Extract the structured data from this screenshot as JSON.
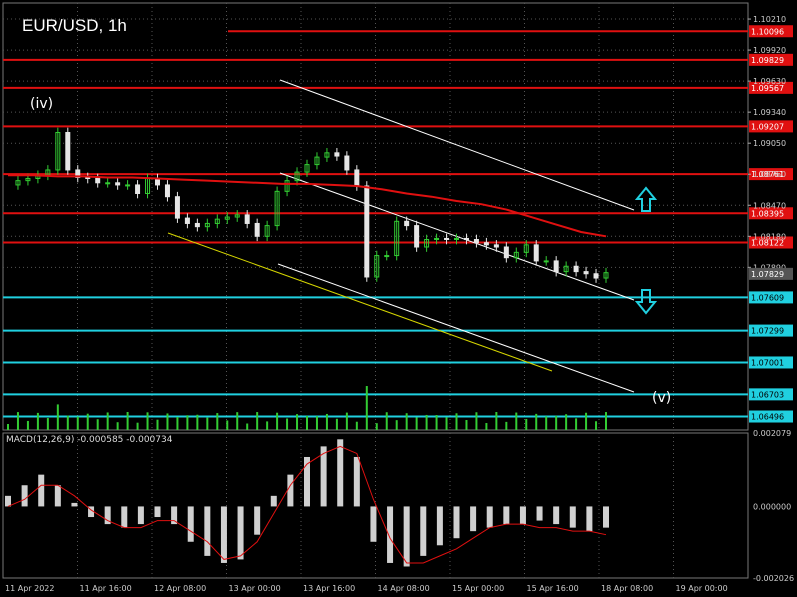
{
  "header": {
    "title": "EUR/USD, 1h"
  },
  "macd": {
    "label": "MACD(12,26,9) -0.000585 -0.000734"
  },
  "colors": {
    "background": "#000000",
    "bull_candle": "#33cc33",
    "bear_candle": "#e6e6e6",
    "moving_average": "#e01010",
    "resistance": "#e01010",
    "support": "#20d0e0",
    "channel": "#ffffff",
    "lower_trendline": "#d6d600",
    "volume": "#33cc33",
    "macd_signal": "#e01010",
    "macd_histogram": "#d0d0d0",
    "arrow": "#20d0e0"
  },
  "chart_data": {
    "type": "candlestick",
    "symbol": "EUR/USD",
    "timeframe": "1h",
    "ylim": [
      1.0637,
      1.1036
    ],
    "y_ticks": [
      "1.10210",
      "1.09920",
      "1.09630",
      "1.09340",
      "1.09050",
      "1.08760",
      "1.08470",
      "1.08180",
      "1.07890"
    ],
    "x_ticks": [
      "11 Apr 2022",
      "11 Apr 16:00",
      "12 Apr 08:00",
      "13 Apr 00:00",
      "13 Apr 16:00",
      "14 Apr 08:00",
      "15 Apr 00:00",
      "15 Apr 16:00",
      "18 Apr 08:00",
      "19 Apr 00:00"
    ],
    "current_price": "1.07829",
    "close_path": [
      1.0866,
      1.087,
      1.0872,
      1.0875,
      1.088,
      1.0915,
      1.088,
      1.0873,
      1.0872,
      1.0868,
      1.0868,
      1.0866,
      1.0866,
      1.0858,
      1.0872,
      1.0866,
      1.0855,
      1.0835,
      1.083,
      1.0827,
      1.083,
      1.0834,
      1.0836,
      1.0838,
      1.083,
      1.0818,
      1.0828,
      1.086,
      1.087,
      1.0878,
      1.0885,
      1.0892,
      1.0896,
      1.0893,
      1.088,
      1.0865,
      1.078,
      1.08,
      1.08,
      1.0832,
      1.0828,
      1.0808,
      1.0815,
      1.0816,
      1.0815,
      1.0816,
      1.0815,
      1.0812,
      1.081,
      1.0808,
      1.0798,
      1.0803,
      1.081,
      1.0795,
      1.0795,
      1.0785,
      1.079,
      1.0785,
      1.0783,
      1.0779,
      1.0784
    ],
    "moving_average": [
      1.0875,
      1.0875,
      1.0874,
      1.0874,
      1.0873,
      1.0873,
      1.0872,
      1.0871,
      1.087,
      1.0869,
      1.0868,
      1.0867,
      1.0867,
      1.0866,
      1.0865,
      1.0862,
      1.0858,
      1.0855,
      1.0851,
      1.0848,
      1.0843,
      1.0836,
      1.0829,
      1.0822,
      1.0818
    ],
    "horizontal_levels": [
      {
        "value": 1.10096,
        "label": "1.10096",
        "color": "resistance"
      },
      {
        "value": 1.09829,
        "label": "1.09829",
        "color": "resistance"
      },
      {
        "value": 1.09567,
        "label": "1.09567",
        "color": "resistance"
      },
      {
        "value": 1.09207,
        "label": "1.09207",
        "color": "resistance"
      },
      {
        "value": 1.08761,
        "label": "1.08761",
        "color": "resistance"
      },
      {
        "value": 1.08395,
        "label": "1.08395",
        "color": "resistance"
      },
      {
        "value": 1.08122,
        "label": "1.08122",
        "color": "resistance"
      },
      {
        "value": 1.07609,
        "label": "1.07609",
        "color": "support"
      },
      {
        "value": 1.07299,
        "label": "1.07299",
        "color": "support"
      },
      {
        "value": 1.07001,
        "label": "1.07001",
        "color": "support"
      },
      {
        "value": 1.06703,
        "label": "1.06703",
        "color": "support"
      },
      {
        "value": 1.06496,
        "label": "1.06496",
        "color": "support"
      }
    ],
    "annotations": [
      "(iv)",
      "(v)"
    ],
    "macd": {
      "params": "12,26,9",
      "macd": -0.000585,
      "signal": -0.000734,
      "ylim": [
        -0.002026,
        0.002079
      ],
      "y_ticks": [
        "0.002079",
        "0.000000",
        "-0.002026"
      ],
      "histogram": [
        0.0003,
        0.0006,
        0.0009,
        0.0006,
        0.0001,
        -0.0003,
        -0.0005,
        -0.0006,
        -0.0005,
        -0.0003,
        -0.0005,
        -0.001,
        -0.0014,
        -0.0016,
        -0.0015,
        -0.0008,
        0.0003,
        0.0009,
        0.0014,
        0.0017,
        0.0019,
        0.0014,
        -0.001,
        -0.0016,
        -0.0017,
        -0.0014,
        -0.0011,
        -0.0009,
        -0.0007,
        -0.0006,
        -0.0005,
        -0.0005,
        -0.0004,
        -0.0005,
        -0.0006,
        -0.0007,
        -0.0006
      ],
      "signal_path": [
        0.0,
        0.0002,
        0.0006,
        0.0006,
        0.0003,
        -0.0001,
        -0.0004,
        -0.0006,
        -0.0006,
        -0.0004,
        -0.0004,
        -0.0007,
        -0.001,
        -0.0015,
        -0.0014,
        -0.001,
        -0.0002,
        0.0006,
        0.0012,
        0.0015,
        0.0017,
        0.0015,
        0.0002,
        -0.0009,
        -0.0016,
        -0.0016,
        -0.0014,
        -0.0012,
        -0.0009,
        -0.0006,
        -0.0005,
        -0.0005,
        -0.0006,
        -0.0006,
        -0.0007,
        -0.0007,
        -0.0008
      ]
    }
  }
}
